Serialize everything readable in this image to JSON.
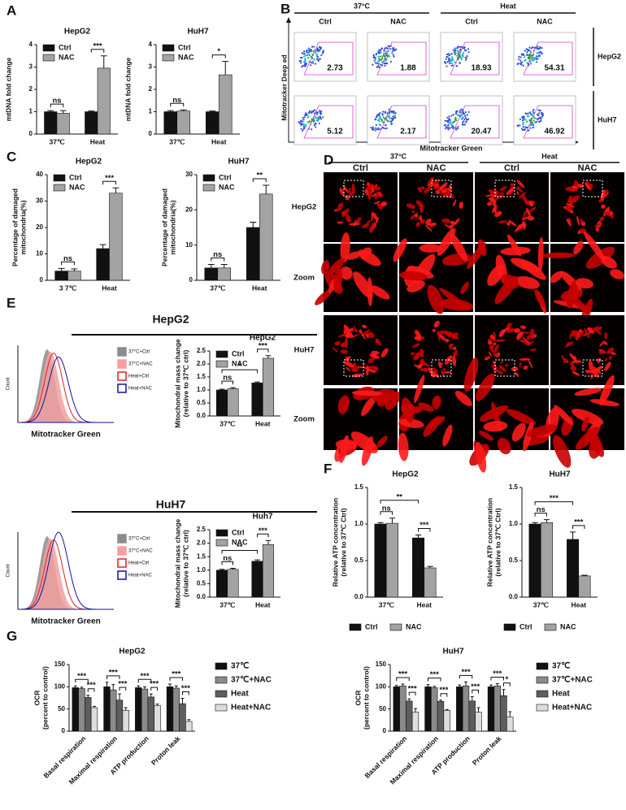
{
  "panels": [
    "A",
    "B",
    "C",
    "D",
    "E",
    "F",
    "G"
  ],
  "chart_data": [
    {
      "type": "bar",
      "title": "HepG2",
      "ylabel": [
        "mtDNA  fold change"
      ],
      "categories": [
        "37℃",
        "Heat"
      ],
      "series": [
        {
          "name": "Ctrl",
          "color": "#111111",
          "values": [
            1,
            1
          ],
          "errors": [
            0.05,
            0.03
          ]
        },
        {
          "name": "NAC",
          "color": "#a3a3a3",
          "values": [
            0.93,
            2.95
          ],
          "errors": [
            0.12,
            0.55
          ]
        }
      ],
      "ylim": [
        0,
        4
      ],
      "yticks": [
        0,
        1,
        2,
        3,
        4
      ],
      "legend": "upper left",
      "annotations": [
        "ns",
        "***"
      ]
    },
    {
      "type": "bar",
      "title": "HuH7",
      "ylabel": [
        "mtDNA  fold change"
      ],
      "categories": [
        "37℃",
        "Heat"
      ],
      "series": [
        {
          "name": "Ctrl",
          "color": "#111111",
          "values": [
            1,
            1
          ],
          "errors": [
            0.05,
            0.03
          ]
        },
        {
          "name": "NAC",
          "color": "#a3a3a3",
          "values": [
            1.03,
            2.65
          ],
          "errors": [
            0.05,
            0.6
          ]
        }
      ],
      "ylim": [
        0,
        4
      ],
      "yticks": [
        0,
        1,
        2,
        3,
        4
      ],
      "legend": "upper left",
      "annotations": [
        "ns",
        "*"
      ]
    },
    {
      "type": "bar",
      "title": "HepG2",
      "ylabel": [
        "Percentage of damaged",
        "mitochondria(%)"
      ],
      "categories": [
        "3 7℃",
        "Heat"
      ],
      "series": [
        {
          "name": "Ctrl",
          "color": "#111111",
          "values": [
            3.5,
            12
          ],
          "errors": [
            1,
            1.5
          ]
        },
        {
          "name": "NAC",
          "color": "#a3a3a3",
          "values": [
            3.5,
            33
          ],
          "errors": [
            0.8,
            2
          ]
        }
      ],
      "ylim": [
        0,
        40
      ],
      "yticks": [
        0,
        10,
        20,
        30,
        40
      ],
      "legend": "upper left",
      "annotations": [
        "ns",
        "***"
      ]
    },
    {
      "type": "bar",
      "title": "HuH7",
      "ylabel": [
        "Percentage of damaged",
        "mitochondria(%)"
      ],
      "categories": [
        "37℃",
        "Heat"
      ],
      "series": [
        {
          "name": "Ctrl",
          "color": "#111111",
          "values": [
            3.5,
            15
          ],
          "errors": [
            1,
            1.5
          ]
        },
        {
          "name": "NAC",
          "color": "#a3a3a3",
          "values": [
            3.5,
            24.5
          ],
          "errors": [
            1,
            2.5
          ]
        }
      ],
      "ylim": [
        0,
        30
      ],
      "yticks": [
        0,
        10,
        20,
        30
      ],
      "legend": "upper left",
      "annotations": [
        "ns",
        "**"
      ]
    },
    {
      "type": "bar",
      "title": "HepG2",
      "ylabel": [
        "Mitochondral mass change",
        "(relative to 37℃ ctrl)"
      ],
      "categories": [
        "37℃",
        "Heat"
      ],
      "series": [
        {
          "name": "Ctrl",
          "color": "#111111",
          "values": [
            1,
            1.27
          ],
          "errors": [
            0.03,
            0.04
          ]
        },
        {
          "name": "NAC",
          "color": "#a3a3a3",
          "values": [
            1.05,
            2.22
          ],
          "errors": [
            0.04,
            0.1
          ]
        }
      ],
      "ylim": [
        0,
        2.5
      ],
      "yticks": [
        {
          "value": 0,
          "label": "0.0"
        },
        0.5,
        {
          "value": 1,
          "label": "1.0"
        },
        1.5,
        {
          "value": 2,
          "label": "2.0"
        },
        2.5
      ],
      "legend": "upper left",
      "annotations": [
        "ns",
        "*",
        "***"
      ]
    },
    {
      "type": "bar",
      "title": "Huh7",
      "ylabel": [
        "Mitochondral mass change",
        "(relative to 37℃ ctrl)"
      ],
      "categories": [
        "37℃",
        "Heat"
      ],
      "series": [
        {
          "name": "Ctrl",
          "color": "#111111",
          "values": [
            1,
            1.33
          ],
          "errors": [
            0.03,
            0.05
          ]
        },
        {
          "name": "NAC",
          "color": "#a3a3a3",
          "values": [
            1.03,
            1.95
          ],
          "errors": [
            0.04,
            0.15
          ]
        }
      ],
      "ylim": [
        0,
        2.5
      ],
      "yticks": [
        {
          "value": 0,
          "label": "0.0"
        },
        0.5,
        {
          "value": 1,
          "label": "1.0"
        },
        1.5,
        {
          "value": 2,
          "label": "2.0"
        },
        2.5
      ],
      "legend": "upper left",
      "annotations": [
        "ns",
        "**",
        "***"
      ]
    },
    {
      "type": "bar",
      "title": "HepG2",
      "ylabel": [
        "Relative ATP concentration",
        "(relative to 37℃ Ctrl)"
      ],
      "categories": [
        "37℃",
        "Heat"
      ],
      "series": [
        {
          "name": "Ctrl",
          "color": "#111111",
          "values": [
            1,
            0.81
          ],
          "errors": [
            0.02,
            0.04
          ]
        },
        {
          "name": "NAC",
          "color": "#a3a3a3",
          "values": [
            1.01,
            0.4
          ],
          "errors": [
            0.07,
            0.02
          ]
        }
      ],
      "ylim": [
        0,
        1.5
      ],
      "yticks": [
        {
          "value": 0,
          "label": "0.0"
        },
        0.5,
        {
          "value": 1,
          "label": "1.0"
        },
        1.5
      ],
      "legend": "bottom",
      "annotations": [
        "ns",
        "***",
        "**"
      ]
    },
    {
      "type": "bar",
      "title": "HuH7",
      "ylabel": [
        "Relative ATP concentration",
        "(relative to 37℃ Ctrl)"
      ],
      "categories": [
        "37℃",
        "Heat"
      ],
      "series": [
        {
          "name": "Ctrl",
          "color": "#111111",
          "values": [
            1,
            0.79
          ],
          "errors": [
            0.02,
            0.1
          ]
        },
        {
          "name": "NAC",
          "color": "#a3a3a3",
          "values": [
            1.02,
            0.29
          ],
          "errors": [
            0.04,
            0.01
          ]
        }
      ],
      "ylim": [
        0,
        1.5
      ],
      "yticks": [
        {
          "value": 0,
          "label": "0.0"
        },
        0.5,
        {
          "value": 1,
          "label": "1.0"
        },
        1.5
      ],
      "legend": "bottom",
      "annotations": [
        "ns",
        "***",
        "***"
      ]
    },
    {
      "type": "bar",
      "title": "HepG2",
      "ylabel": [
        "OCR",
        "(percent to control)"
      ],
      "categories": [
        "Basal respiration",
        "Maximal respiration",
        "ATP production",
        "Proton leak"
      ],
      "series": [
        {
          "name": "37℃",
          "color": "#111111",
          "values": [
            98,
            100,
            98,
            100
          ],
          "errors": [
            4,
            10,
            4,
            6
          ]
        },
        {
          "name": "37℃+NAC",
          "color": "#8a8a8a",
          "values": [
            96,
            93,
            95,
            97
          ],
          "errors": [
            3,
            12,
            5,
            5
          ]
        },
        {
          "name": "Heat",
          "color": "#5e5e5e",
          "values": [
            76,
            70,
            77,
            62
          ],
          "errors": [
            5,
            14,
            7,
            12
          ]
        },
        {
          "name": "Heat+NAC",
          "color": "#dddddd",
          "values": [
            53,
            47,
            58,
            22
          ],
          "errors": [
            3,
            6,
            3,
            4
          ]
        }
      ],
      "ylim": [
        0,
        150
      ],
      "yticks": [
        0,
        50,
        100,
        150
      ],
      "legend": "right",
      "annotations": [
        "***",
        "***",
        "***",
        "***",
        "***",
        "***",
        "***",
        "***"
      ]
    },
    {
      "type": "bar",
      "title": "HuH7",
      "ylabel": [
        "OCR",
        "(percent to control)"
      ],
      "categories": [
        "Basal respiration",
        "Maximal respiration",
        "ATP production",
        "Proton leak"
      ],
      "series": [
        {
          "name": "37℃",
          "color": "#111111",
          "values": [
            100,
            100,
            100,
            100
          ],
          "errors": [
            3,
            5,
            4,
            4
          ]
        },
        {
          "name": "37℃+NAC",
          "color": "#8a8a8a",
          "values": [
            102,
            98,
            102,
            102
          ],
          "errors": [
            4,
            3,
            9,
            5
          ]
        },
        {
          "name": "Heat",
          "color": "#5e5e5e",
          "values": [
            68,
            67,
            68,
            80
          ],
          "errors": [
            5,
            3,
            10,
            14
          ]
        },
        {
          "name": "Heat+NAC",
          "color": "#dddddd",
          "values": [
            43,
            47,
            43,
            32
          ],
          "errors": [
            8,
            2,
            10,
            12
          ]
        }
      ],
      "ylim": [
        0,
        150
      ],
      "yticks": [
        0,
        50,
        100,
        150
      ],
      "legend": "right",
      "annotations": [
        "***",
        "***",
        "***",
        "***",
        "***",
        "***",
        "***",
        "*"
      ]
    }
  ],
  "flow": {
    "conditions": [
      "37°C",
      "Heat"
    ],
    "treatments": [
      "Ctrl",
      "NAC",
      "Ctrl",
      "NAC"
    ],
    "rows": [
      "HepG2",
      "HuH7"
    ],
    "values": [
      [
        2.73,
        1.88,
        18.93,
        54.31
      ],
      [
        5.12,
        2.17,
        20.47,
        46.92
      ]
    ],
    "xlabel": "Mitotracker Green",
    "ylabel": "Mitotracker Deep ed"
  },
  "microscopy": {
    "conditions": [
      "37°C",
      "Heat"
    ],
    "treatments": [
      "Ctrl",
      "NAC",
      "Ctrl",
      "NAC"
    ],
    "rows": [
      "HepG2",
      "Zoom",
      "HuH7",
      "Zoom"
    ]
  },
  "histograms": [
    {
      "heading": "HepG2",
      "legend": [
        "37°C+Ctrl",
        "37°C+NAC",
        "Heat+Ctrl",
        "Heat+NAC"
      ],
      "xlabel": "Mitotracker Green",
      "ylabel": "Count"
    },
    {
      "heading": "HuH7",
      "legend": [
        "37°C+Ctrl",
        "37°C+NAC",
        "Heat+Ctrl",
        "Heat+NAC"
      ],
      "xlabel": "Mitotracker Green",
      "ylabel": "Count"
    }
  ]
}
